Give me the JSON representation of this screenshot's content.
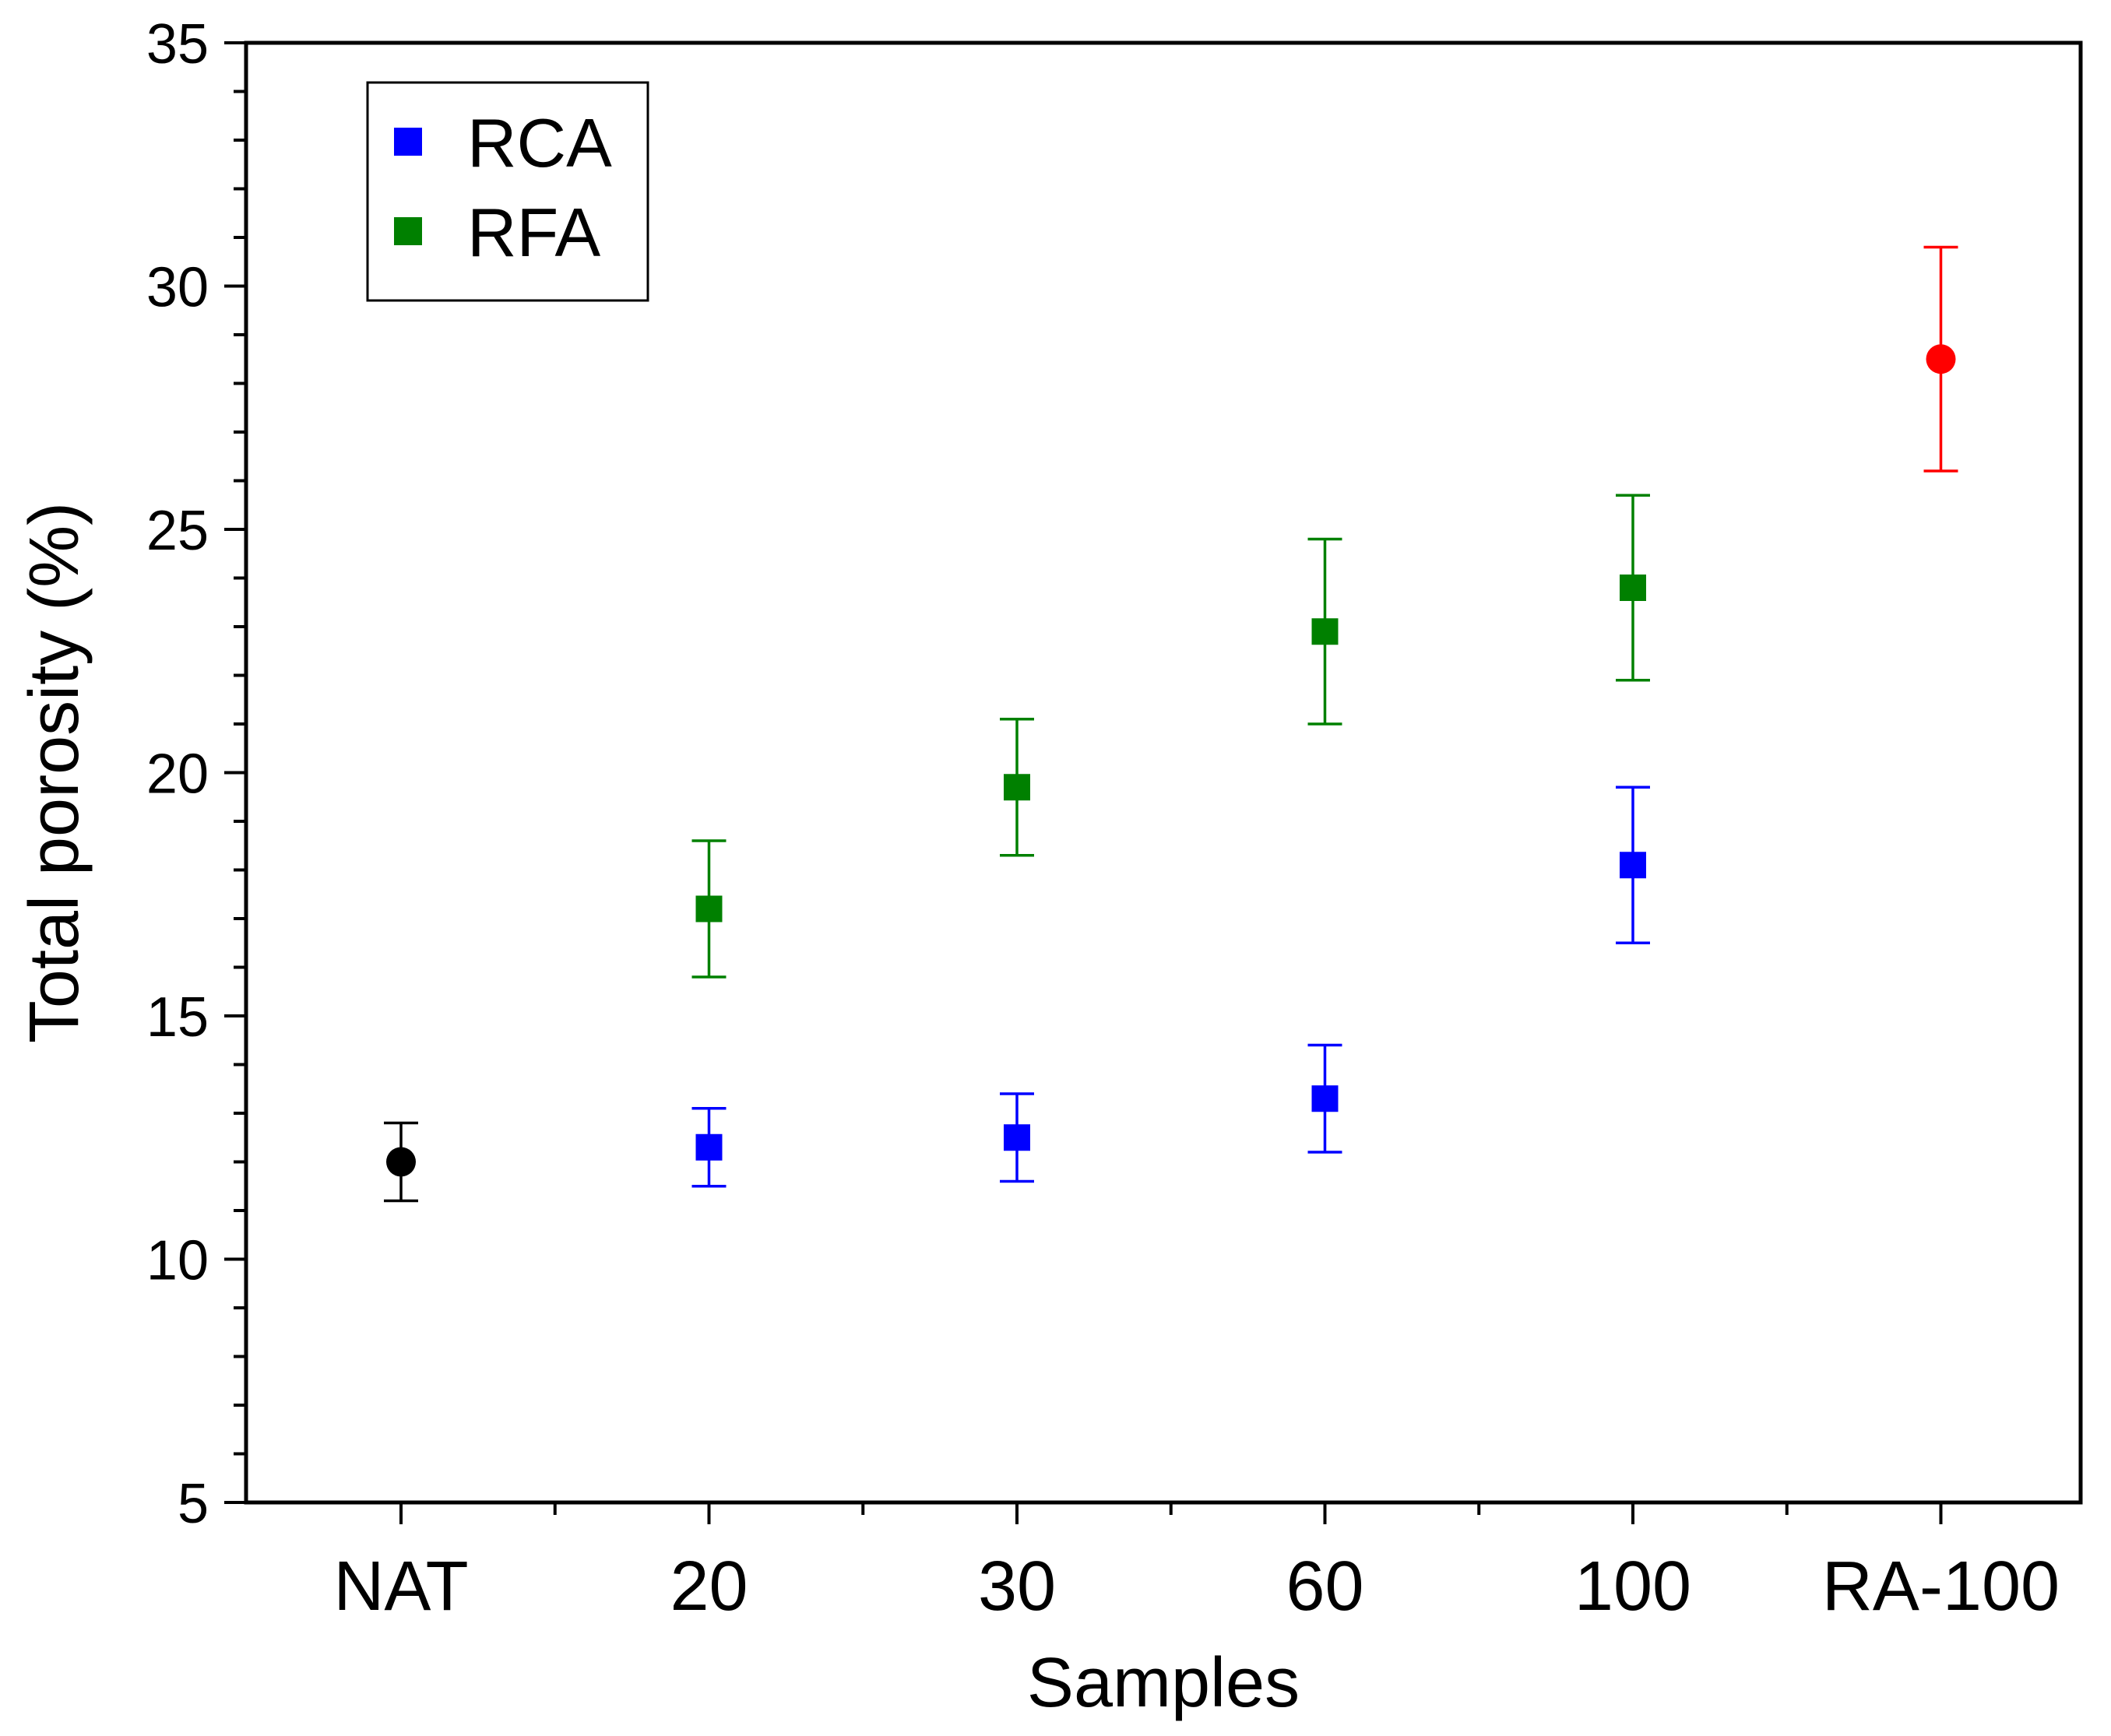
{
  "chart_data": {
    "type": "scatter",
    "title": "",
    "xlabel": "Samples",
    "ylabel": "Total porosity (%)",
    "categories": [
      "NAT",
      "20",
      "30",
      "60",
      "100",
      "RA-100"
    ],
    "ylim": [
      5,
      35
    ],
    "yticks": [
      "5",
      "10",
      "15",
      "20",
      "25",
      "30",
      "35"
    ],
    "grid": false,
    "legend": {
      "position": "top-left",
      "entries": [
        {
          "label": "RCA",
          "color": "#0000ff",
          "marker": "square"
        },
        {
          "label": "RFA",
          "color": "#008000",
          "marker": "square"
        }
      ]
    },
    "series": [
      {
        "name": "NAT",
        "color": "#000000",
        "marker": "circle",
        "in_legend": false,
        "points": [
          {
            "category": "NAT",
            "y": 12.0,
            "err_low": 11.2,
            "err_high": 12.8
          }
        ]
      },
      {
        "name": "RCA",
        "color": "#0000ff",
        "marker": "square",
        "in_legend": true,
        "points": [
          {
            "category": "20",
            "y": 12.3,
            "err_low": 11.5,
            "err_high": 13.1
          },
          {
            "category": "30",
            "y": 12.5,
            "err_low": 11.6,
            "err_high": 13.4
          },
          {
            "category": "60",
            "y": 13.3,
            "err_low": 12.2,
            "err_high": 14.4
          },
          {
            "category": "100",
            "y": 18.1,
            "err_low": 16.5,
            "err_high": 19.7
          }
        ]
      },
      {
        "name": "RFA",
        "color": "#008000",
        "marker": "square",
        "in_legend": true,
        "points": [
          {
            "category": "20",
            "y": 17.2,
            "err_low": 15.8,
            "err_high": 18.6
          },
          {
            "category": "30",
            "y": 19.7,
            "err_low": 18.3,
            "err_high": 21.1
          },
          {
            "category": "60",
            "y": 22.9,
            "err_low": 21.0,
            "err_high": 24.8
          },
          {
            "category": "100",
            "y": 23.8,
            "err_low": 21.9,
            "err_high": 25.7
          }
        ]
      },
      {
        "name": "RA-100",
        "color": "#ff0000",
        "marker": "circle",
        "in_legend": false,
        "points": [
          {
            "category": "RA-100",
            "y": 28.5,
            "err_low": 26.2,
            "err_high": 30.8
          }
        ]
      }
    ]
  }
}
